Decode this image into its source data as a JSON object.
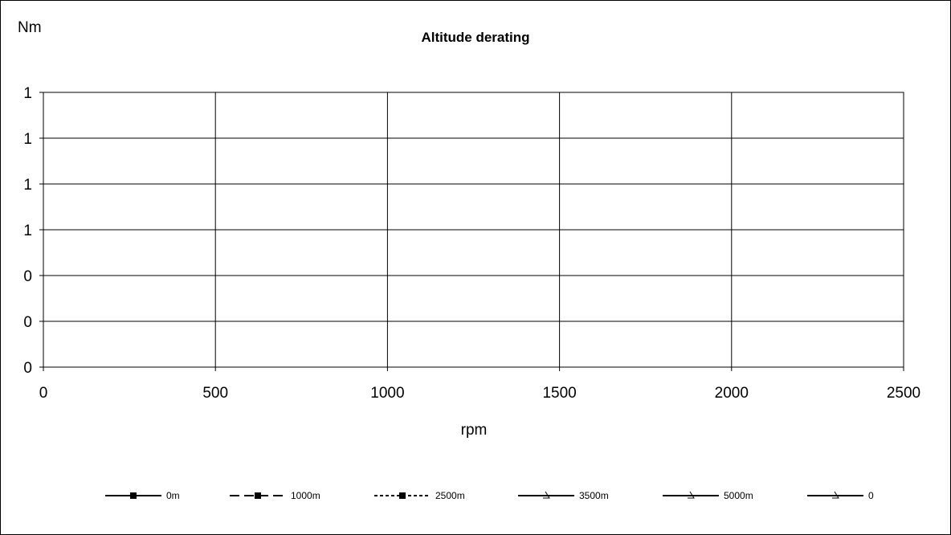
{
  "chart_data": {
    "type": "line",
    "title": "Altitude derating",
    "xlabel": "rpm",
    "ylabel": "Nm",
    "xlim": [
      0,
      2500
    ],
    "ylim": [
      0,
      6
    ],
    "x_ticks": [
      0,
      500,
      1000,
      1500,
      2000,
      2500
    ],
    "y_tick_labels": [
      "0",
      "0",
      "0",
      "1",
      "1",
      "1",
      "1"
    ],
    "grid": true,
    "legend_position": "bottom",
    "series": [
      {
        "name": "0m",
        "style": "solid",
        "marker": "square",
        "values": []
      },
      {
        "name": "1000m",
        "style": "dashed",
        "marker": "square",
        "values": []
      },
      {
        "name": "2500m",
        "style": "dotted",
        "marker": "square",
        "values": []
      },
      {
        "name": "3500m",
        "style": "solid",
        "marker": "triangle",
        "values": []
      },
      {
        "name": "5000m",
        "style": "solid",
        "marker": "triangle",
        "values": []
      },
      {
        "name": "0",
        "style": "solid",
        "marker": "triangle",
        "values": []
      }
    ]
  }
}
